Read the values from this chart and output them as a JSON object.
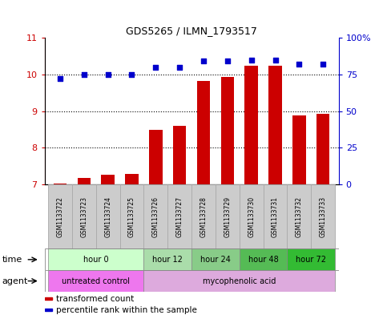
{
  "title": "GDS5265 / ILMN_1793517",
  "samples": [
    "GSM1133722",
    "GSM1133723",
    "GSM1133724",
    "GSM1133725",
    "GSM1133726",
    "GSM1133727",
    "GSM1133728",
    "GSM1133729",
    "GSM1133730",
    "GSM1133731",
    "GSM1133732",
    "GSM1133733"
  ],
  "bar_values": [
    7.03,
    7.18,
    7.25,
    7.28,
    8.48,
    8.6,
    9.83,
    9.93,
    10.23,
    10.24,
    8.87,
    8.92
  ],
  "dot_values": [
    72,
    75,
    75,
    75,
    80,
    80,
    84,
    84,
    85,
    85,
    82,
    82
  ],
  "ylim_left": [
    7,
    11
  ],
  "ylim_right": [
    0,
    100
  ],
  "yticks_left": [
    7,
    8,
    9,
    10,
    11
  ],
  "yticks_right": [
    0,
    25,
    50,
    75,
    100
  ],
  "bar_color": "#cc0000",
  "dot_color": "#0000cc",
  "bar_bottom": 7,
  "time_groups": [
    {
      "label": "hour 0",
      "start": 0,
      "end": 4,
      "color": "#ccffcc"
    },
    {
      "label": "hour 12",
      "start": 4,
      "end": 6,
      "color": "#aaddaa"
    },
    {
      "label": "hour 24",
      "start": 6,
      "end": 8,
      "color": "#88cc88"
    },
    {
      "label": "hour 48",
      "start": 8,
      "end": 10,
      "color": "#55bb55"
    },
    {
      "label": "hour 72",
      "start": 10,
      "end": 12,
      "color": "#33bb33"
    }
  ],
  "agent_groups": [
    {
      "label": "untreated control",
      "start": 0,
      "end": 4,
      "color": "#ee77ee"
    },
    {
      "label": "mycophenolic acid",
      "start": 4,
      "end": 12,
      "color": "#ddaadd"
    }
  ],
  "legend_items": [
    {
      "label": "transformed count",
      "color": "#cc0000"
    },
    {
      "label": "percentile rank within the sample",
      "color": "#0000cc"
    }
  ],
  "left_axis_color": "#cc0000",
  "right_axis_color": "#0000cc",
  "sample_bg_color": "#cccccc",
  "sample_border_color": "#aaaaaa"
}
